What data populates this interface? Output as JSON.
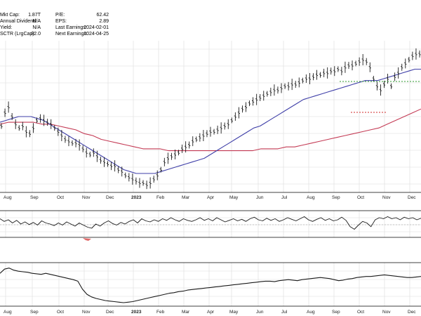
{
  "stats": {
    "col1": [
      {
        "label": "Mkt Cap:",
        "value": "1.87T"
      },
      {
        "label": "Annual Dividend:",
        "value": "N/A"
      },
      {
        "label": "Yield:",
        "value": "N/A"
      },
      {
        "label": "SCTR (LrgCap):",
        "value": "82.0"
      }
    ],
    "col2": [
      {
        "label": "P/E:",
        "value": "62.42"
      },
      {
        "label": "EPS:",
        "value": "2.89"
      },
      {
        "label": "Last Earnings:",
        "value": "2024-02-01"
      },
      {
        "label": "Next Earnings:",
        "value": "2024-04-25"
      }
    ]
  },
  "colors": {
    "price": "#1a1a1a",
    "ma_short": "#3f3fa8",
    "ma_long": "#c43b55",
    "resistance": "#2e9a2e",
    "support": "#d12a2a",
    "grid": "#dcdcdc",
    "axis": "#000000"
  },
  "chart_data": [
    {
      "type": "line",
      "panel": "price",
      "x_tick_labels": [
        "Aug",
        "Sep",
        "Oct",
        "Nov",
        "Dec",
        "2023",
        "Feb",
        "Mar",
        "Apr",
        "May",
        "Jun",
        "Jul",
        "Aug",
        "Sep",
        "Oct",
        "Nov",
        "Dec"
      ],
      "series": [
        {
          "role": "price",
          "style": "ohlc-bars",
          "values": [
            45,
            52,
            55,
            50,
            46,
            44,
            45,
            42,
            41,
            44,
            48,
            49,
            48,
            47,
            46,
            44,
            42,
            40,
            38,
            37,
            36,
            36,
            35,
            33,
            31,
            30,
            31,
            29,
            27,
            26,
            25,
            24,
            24,
            22,
            21,
            19,
            18,
            17,
            16,
            15,
            15,
            14,
            15,
            17,
            19,
            22,
            26,
            28,
            29,
            30,
            31,
            33,
            34,
            35,
            37,
            38,
            39,
            40,
            41,
            42,
            42,
            43,
            44,
            45,
            46,
            48,
            50,
            52,
            54,
            55,
            57,
            58,
            59,
            60,
            61,
            62,
            63,
            64,
            64,
            65,
            66,
            66,
            67,
            67,
            68,
            69,
            70,
            70,
            71,
            72,
            72,
            73,
            73,
            74,
            74,
            75,
            74,
            76,
            77,
            77,
            78,
            79,
            80,
            79,
            76,
            70,
            66,
            64,
            67,
            70,
            66,
            71,
            73,
            76,
            78,
            80,
            82,
            83,
            83
          ]
        },
        {
          "role": "ma_short",
          "values": [
            47,
            48,
            49,
            50,
            50,
            50,
            49,
            48,
            46,
            44,
            42,
            40,
            38,
            36,
            34,
            32,
            30,
            28,
            26,
            24,
            22,
            21,
            20,
            20,
            20,
            20,
            21,
            22,
            23,
            24,
            25,
            26,
            27,
            28,
            30,
            32,
            34,
            36,
            38,
            40,
            42,
            44,
            45,
            47,
            49,
            51,
            53,
            55,
            57,
            59,
            60,
            61,
            62,
            63,
            64,
            65,
            66,
            67,
            68,
            69,
            69,
            69,
            70,
            71,
            72,
            73,
            74,
            75,
            75
          ]
        },
        {
          "role": "ma_long",
          "values": [
            46,
            47,
            47,
            47,
            47,
            46,
            46,
            45,
            44,
            43,
            41,
            40,
            38,
            37,
            36,
            35,
            34,
            33,
            33,
            33,
            32,
            32,
            32,
            32,
            32,
            32,
            32,
            32,
            32,
            32,
            32,
            33,
            33,
            33,
            34,
            34,
            35,
            36,
            37,
            38,
            39,
            40,
            41,
            42,
            43,
            44,
            46,
            48,
            50,
            52,
            54
          ]
        }
      ],
      "annotations": [
        {
          "type": "resistance-line",
          "level": "high"
        },
        {
          "type": "support-line",
          "level": "low"
        }
      ]
    },
    {
      "type": "line",
      "panel": "oscillator",
      "series": [
        {
          "role": "oscillator",
          "values": [
            60,
            55,
            58,
            52,
            57,
            50,
            54,
            49,
            53,
            48,
            56,
            52,
            50,
            47,
            52,
            48,
            54,
            50,
            46,
            52,
            48,
            44,
            42,
            50,
            46,
            52,
            56,
            51,
            48,
            53,
            50,
            55,
            58,
            52,
            60,
            56,
            54,
            58,
            55,
            60,
            57,
            62,
            58,
            55,
            60,
            57,
            55,
            58,
            62,
            57,
            60,
            56,
            62,
            58,
            54,
            57,
            60,
            56,
            59,
            55,
            60,
            63,
            58,
            56,
            61,
            57,
            60,
            55,
            58,
            62,
            59,
            56,
            60,
            64,
            58,
            55,
            59,
            62,
            57,
            60,
            56,
            58,
            63,
            57,
            45,
            40,
            48,
            55,
            52,
            45,
            58,
            62,
            60,
            64,
            60,
            62,
            58,
            63,
            60,
            62,
            58,
            61
          ]
        }
      ],
      "annotations": [
        {
          "type": "oversold-shading"
        }
      ]
    },
    {
      "type": "line",
      "panel": "lower",
      "x_tick_labels": [
        "Aug",
        "Sep",
        "Oct",
        "Nov",
        "Dec",
        "2023",
        "Feb",
        "Mar",
        "Apr",
        "May",
        "Jun",
        "Jul",
        "Aug",
        "Sep",
        "Oct",
        "Nov",
        "Dec"
      ],
      "series": [
        {
          "role": "lower_indicator",
          "values": [
            70,
            78,
            80,
            76,
            74,
            73,
            72,
            70,
            69,
            68,
            70,
            68,
            66,
            64,
            62,
            60,
            58,
            55,
            40,
            30,
            25,
            22,
            20,
            18,
            17,
            16,
            15,
            14,
            15,
            16,
            18,
            20,
            22,
            24,
            26,
            28,
            30,
            32,
            33,
            35,
            36,
            38,
            39,
            40,
            41,
            42,
            43,
            44,
            45,
            46,
            47,
            48,
            49,
            50,
            51,
            52,
            53,
            54,
            55,
            55,
            54,
            56,
            57,
            58,
            57,
            56,
            58,
            59,
            60,
            61,
            62,
            61,
            60,
            58,
            56,
            57,
            59,
            60,
            62,
            63,
            64,
            64,
            65,
            66,
            67,
            66,
            65,
            64,
            63,
            62,
            62,
            63,
            64
          ]
        }
      ]
    }
  ]
}
